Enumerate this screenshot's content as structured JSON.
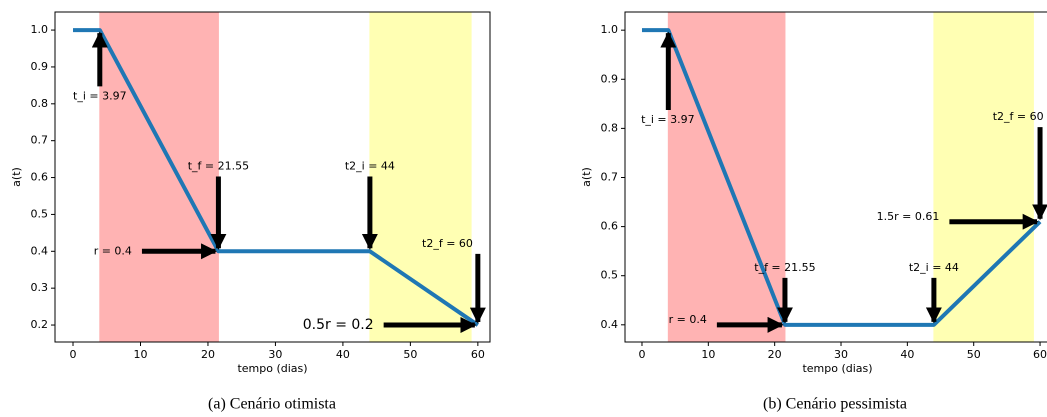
{
  "chart_data": [
    {
      "type": "line",
      "caption": "(a) Cenário otimista",
      "xlabel": "tempo (dias)",
      "ylabel": "a(t)",
      "x": [
        0,
        3.97,
        21.55,
        44,
        60
      ],
      "values": [
        1.0,
        1.0,
        0.4,
        0.4,
        0.2
      ],
      "color": "#1f77b4",
      "xlim": [
        -2.67,
        61.8
      ],
      "ylim": [
        0.154,
        1.049
      ],
      "xticks": [
        0,
        10,
        20,
        30,
        40,
        50,
        60
      ],
      "yticks": [
        0.2,
        0.3,
        0.4,
        0.5,
        0.6,
        0.7,
        0.8,
        0.9,
        {
          "value": 1,
          "label": "1.0"
        }
      ],
      "spans": [
        {
          "x0": 3.97,
          "x1": 21.55,
          "color": "#ffb3b3"
        },
        {
          "x0": 44,
          "x1": 59,
          "color": "#ffffb3"
        }
      ],
      "annotations": [
        {
          "text": "t_i = 3.97",
          "xy": [
            3.97,
            1.0
          ],
          "xytext": [
            3.97,
            0.82
          ]
        },
        {
          "text": "t_f = 21.55",
          "xy": [
            21.55,
            0.4
          ],
          "xytext": [
            21.55,
            0.63
          ]
        },
        {
          "text": "r = 0.4",
          "xy": [
            21.55,
            0.4
          ],
          "xytext": [
            5.9,
            0.4
          ]
        },
        {
          "text": "t2_i = 44",
          "xy": [
            44,
            0.4
          ],
          "xytext": [
            44,
            0.63
          ]
        },
        {
          "text": "t2_f = 60",
          "xy": [
            60,
            0.2
          ],
          "xytext": [
            55.5,
            0.42
          ]
        },
        {
          "text": "0.5r = 0.2",
          "xy": [
            60,
            0.2
          ],
          "xytext": [
            39.3,
            0.2
          ]
        }
      ]
    },
    {
      "type": "line",
      "caption": "(b) Cenário pessimista",
      "xlabel": "tempo (dias)",
      "ylabel": "a(t)",
      "x": [
        0,
        3.97,
        21.55,
        44,
        60
      ],
      "values": [
        1.0,
        1.0,
        0.4,
        0.4,
        0.61
      ],
      "color": "#1f77b4",
      "xlim": [
        -2.56,
        61.5
      ],
      "ylim": [
        0.365,
        1.037
      ],
      "xticks": [
        0,
        10,
        20,
        30,
        40,
        50,
        60
      ],
      "yticks": [
        0.4,
        0.5,
        0.6,
        0.7,
        0.8,
        0.9,
        {
          "value": 1,
          "label": "1.0"
        }
      ],
      "spans": [
        {
          "x0": 3.97,
          "x1": 21.55,
          "color": "#ffb3b3"
        },
        {
          "x0": 44,
          "x1": 59,
          "color": "#ffffb3"
        }
      ],
      "annotations": [
        {
          "text": "t_i = 3.97",
          "xy": [
            3.97,
            1.0
          ],
          "xytext": [
            3.9,
            0.817
          ]
        },
        {
          "text": "t_f = 21.55",
          "xy": [
            21.55,
            0.4
          ],
          "xytext": [
            21.55,
            0.516
          ]
        },
        {
          "text": "r = 0.4",
          "xy": [
            21.55,
            0.4
          ],
          "xytext": [
            6.9,
            0.41
          ]
        },
        {
          "text": "t2_i = 44",
          "xy": [
            44,
            0.4
          ],
          "xytext": [
            44,
            0.516
          ]
        },
        {
          "text": "t2_f = 60",
          "xy": [
            60,
            0.61
          ],
          "xytext": [
            56.7,
            0.823
          ]
        },
        {
          "text": "1.5r = 0.61",
          "xy": [
            60,
            0.61
          ],
          "xytext": [
            40.1,
            0.62
          ]
        }
      ]
    }
  ]
}
